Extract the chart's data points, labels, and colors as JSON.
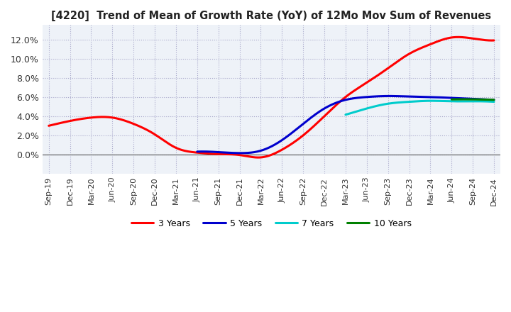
{
  "title": "[4220]  Trend of Mean of Growth Rate (YoY) of 12Mo Mov Sum of Revenues",
  "ylim": [
    -2.0,
    13.5
  ],
  "yticks": [
    0,
    2,
    4,
    6,
    8,
    10,
    12
  ],
  "ytick_labels": [
    "0.0%",
    "2.0%",
    "4.0%",
    "6.0%",
    "8.0%",
    "10.0%",
    "12.0%"
  ],
  "background_color": "#ffffff",
  "plot_bg_color": "#eef2f8",
  "grid_color": "#aaaacc",
  "legend_entries": [
    "3 Years",
    "5 Years",
    "7 Years",
    "10 Years"
  ],
  "legend_colors": [
    "#ff0000",
    "#0000cd",
    "#00cccc",
    "#008000"
  ],
  "x_labels": [
    "Sep-19",
    "Dec-19",
    "Mar-20",
    "Jun-20",
    "Sep-20",
    "Dec-20",
    "Mar-21",
    "Jun-21",
    "Sep-21",
    "Dec-21",
    "Mar-22",
    "Jun-22",
    "Sep-22",
    "Dec-22",
    "Mar-23",
    "Jun-23",
    "Sep-23",
    "Dec-23",
    "Mar-24",
    "Jun-24",
    "Sep-24",
    "Dec-24"
  ],
  "line_3y": [
    3.0,
    3.5,
    3.85,
    3.85,
    3.2,
    2.1,
    0.7,
    0.2,
    0.05,
    -0.05,
    -0.3,
    0.5,
    2.0,
    4.0,
    6.0,
    7.5,
    9.0,
    10.5,
    11.5,
    12.2,
    12.1,
    11.9
  ],
  "line_5y": [
    null,
    null,
    null,
    null,
    null,
    null,
    null,
    0.3,
    0.25,
    0.15,
    0.4,
    1.5,
    3.2,
    4.8,
    5.7,
    6.0,
    6.1,
    6.05,
    6.0,
    5.9,
    5.8,
    5.7
  ],
  "line_7y": [
    null,
    null,
    null,
    null,
    null,
    null,
    null,
    null,
    null,
    null,
    null,
    null,
    null,
    null,
    4.15,
    4.8,
    5.3,
    5.5,
    5.6,
    5.55,
    5.55,
    5.5
  ],
  "line_10y": [
    null,
    null,
    null,
    null,
    null,
    null,
    null,
    null,
    null,
    null,
    null,
    null,
    null,
    null,
    null,
    null,
    null,
    null,
    null,
    5.75,
    5.75,
    5.7
  ]
}
